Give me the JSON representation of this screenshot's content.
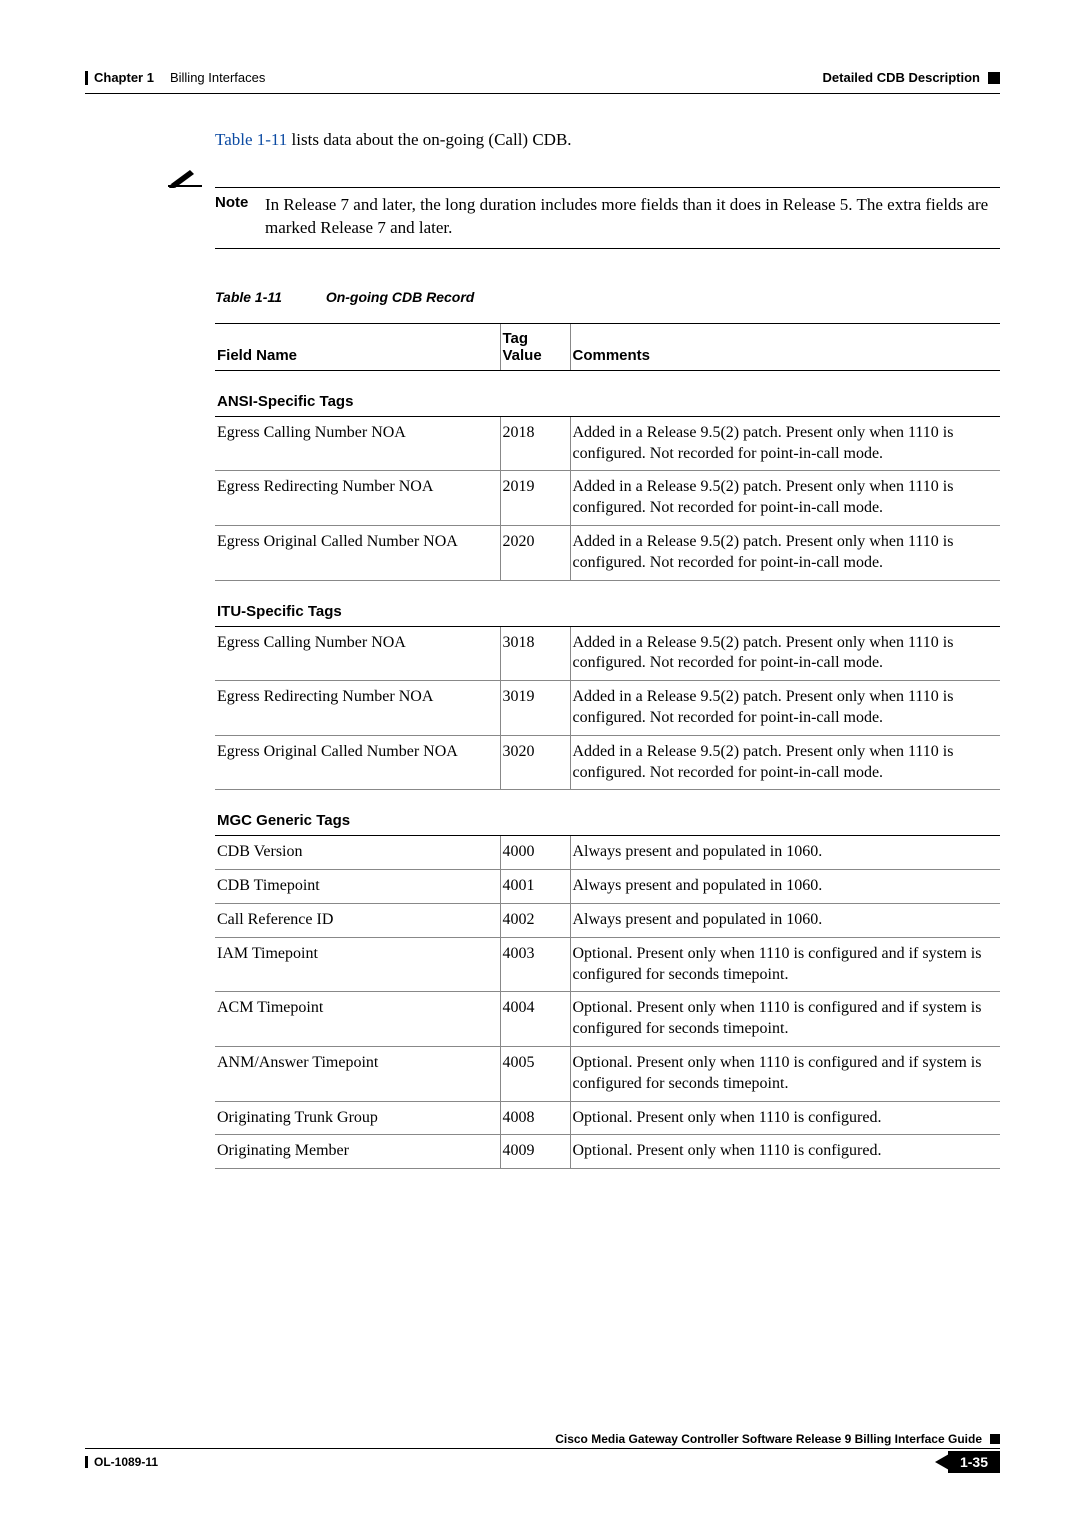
{
  "header": {
    "chapter_label": "Chapter 1",
    "chapter_title": "Billing Interfaces",
    "section_title": "Detailed CDB Description"
  },
  "intro": {
    "link_text": "Table 1-11",
    "rest": " lists data about the on-going (Call) CDB."
  },
  "note": {
    "label": "Note",
    "text": "In Release 7 and later, the long duration includes more fields than it does in Release 5. The extra fields are marked Release 7 and later."
  },
  "table": {
    "caption_num": "Table 1-11",
    "caption_title": "On-going CDB Record",
    "headers": {
      "field": "Field Name",
      "tag": "Tag Value",
      "comments": "Comments"
    },
    "sections": [
      {
        "label": "ANSI-Specific Tags",
        "rows": [
          {
            "field": "Egress Calling Number NOA",
            "tag": "2018",
            "comments": "Added in a Release 9.5(2) patch. Present only when 1110 is configured. Not recorded for point-in-call mode."
          },
          {
            "field": "Egress Redirecting Number NOA",
            "tag": "2019",
            "comments": "Added in a Release 9.5(2) patch. Present only when 1110 is configured. Not recorded for point-in-call mode."
          },
          {
            "field": "Egress Original Called Number NOA",
            "tag": "2020",
            "comments": "Added in a Release 9.5(2) patch. Present only when 1110 is configured. Not recorded for point-in-call mode."
          }
        ]
      },
      {
        "label": "ITU-Specific Tags",
        "rows": [
          {
            "field": "Egress Calling Number NOA",
            "tag": "3018",
            "comments": "Added in a Release 9.5(2) patch. Present only when 1110 is configured. Not recorded for point-in-call mode."
          },
          {
            "field": "Egress Redirecting Number NOA",
            "tag": "3019",
            "comments": "Added in a Release 9.5(2) patch. Present only when 1110 is configured. Not recorded for point-in-call mode."
          },
          {
            "field": "Egress Original Called Number NOA",
            "tag": "3020",
            "comments": "Added in a Release 9.5(2) patch. Present only when 1110 is configured. Not recorded for point-in-call mode."
          }
        ]
      },
      {
        "label": "MGC Generic Tags",
        "rows": [
          {
            "field": "CDB Version",
            "tag": "4000",
            "comments": "Always present and populated in 1060."
          },
          {
            "field": "CDB Timepoint",
            "tag": "4001",
            "comments": "Always present and populated in 1060."
          },
          {
            "field": "Call Reference ID",
            "tag": "4002",
            "comments": "Always present and populated in 1060."
          },
          {
            "field": "IAM Timepoint",
            "tag": "4003",
            "comments": "Optional. Present only when 1110 is configured and if system is configured for seconds timepoint."
          },
          {
            "field": "ACM Timepoint",
            "tag": "4004",
            "comments": "Optional. Present only when 1110 is configured and if system is configured for seconds timepoint."
          },
          {
            "field": "ANM/Answer Timepoint",
            "tag": "4005",
            "comments": "Optional. Present only when 1110 is configured and if system is configured for seconds timepoint."
          },
          {
            "field": "Originating Trunk Group",
            "tag": "4008",
            "comments": "Optional. Present only when 1110 is configured."
          },
          {
            "field": "Originating Member",
            "tag": "4009",
            "comments": "Optional. Present only when 1110 is configured."
          }
        ]
      }
    ]
  },
  "footer": {
    "doc_title": "Cisco Media Gateway Controller Software Release 9 Billing Interface Guide",
    "doc_id": "OL-1089-11",
    "page": "1-35"
  }
}
